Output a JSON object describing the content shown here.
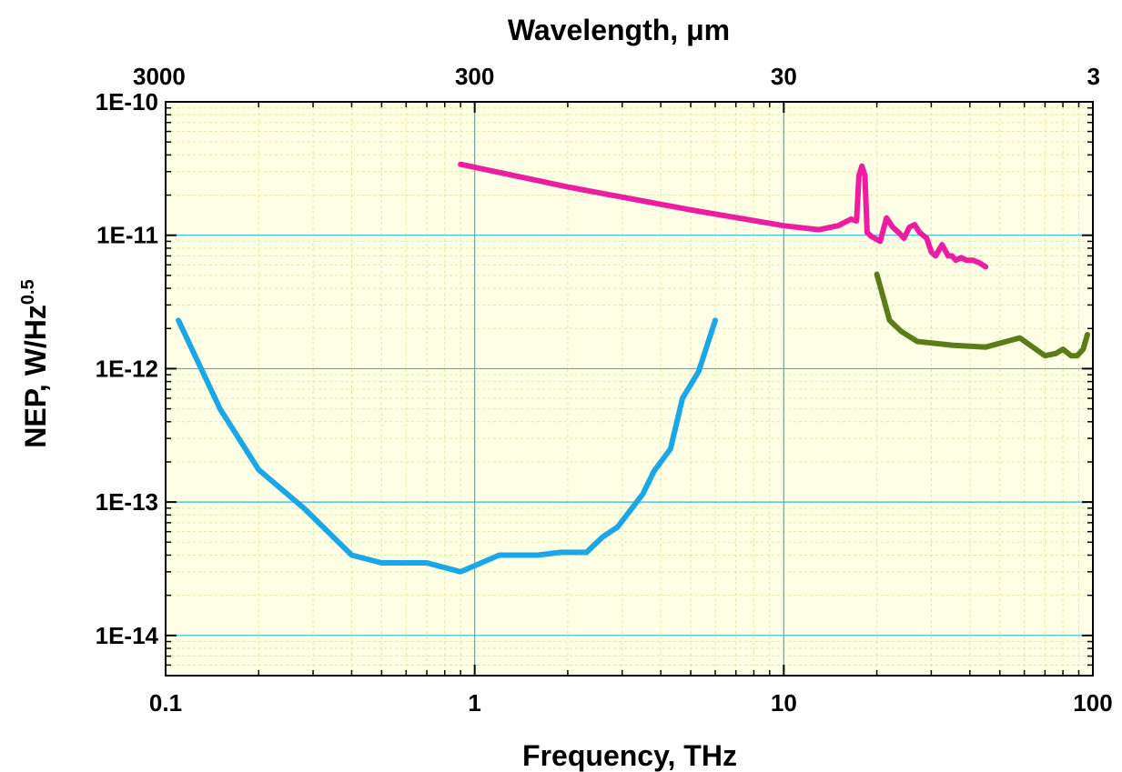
{
  "chart_data": {
    "type": "line",
    "x_axis": {
      "label": "Frequency, THz",
      "scale": "log",
      "range": [
        0.1,
        100
      ],
      "ticks": [
        0.1,
        1,
        10,
        100
      ],
      "tick_labels": [
        "0.1",
        "1",
        "10",
        "100"
      ]
    },
    "top_axis": {
      "label": "Wavelength, μm",
      "scale": "log",
      "ticks_freq_thz": [
        0.1,
        1,
        10,
        100
      ],
      "tick_labels": [
        "3000",
        "300",
        "30",
        "3"
      ]
    },
    "y_axis": {
      "label": "NEP, W/Hz",
      "label_superscript": "0.5",
      "scale": "log",
      "range": [
        5e-15,
        1e-10
      ],
      "ticks": [
        1e-14,
        1e-13,
        1e-12,
        1e-11,
        1e-10
      ],
      "tick_labels": [
        "1E-14",
        "1E-13",
        "1E-12",
        "1E-11",
        "1E-10"
      ]
    },
    "grid": true,
    "series": [
      {
        "color": "#1aa7e8",
        "x": [
          0.11,
          0.15,
          0.2,
          0.28,
          0.4,
          0.5,
          0.7,
          0.9,
          1.2,
          1.6,
          1.9,
          2.3,
          2.6,
          2.9,
          3.5,
          3.8,
          4.3,
          4.7,
          5.3,
          6.0
        ],
        "y": [
          2.3e-12,
          5e-13,
          1.75e-13,
          9e-14,
          4e-14,
          3.5e-14,
          3.5e-14,
          3e-14,
          4e-14,
          4e-14,
          4.2e-14,
          4.2e-14,
          5.5e-14,
          6.5e-14,
          1.15e-13,
          1.7e-13,
          2.5e-13,
          6e-13,
          9.5e-13,
          2.3e-12
        ]
      },
      {
        "color": "#ee1ca0",
        "x": [
          0.9,
          2,
          5,
          10,
          13,
          15,
          16.5,
          17.2,
          17.5,
          17.9,
          18.3,
          18.6,
          19.2,
          20.5,
          21.5,
          22.5,
          23.5,
          24.5,
          25.5,
          26.5,
          27.5,
          29,
          30,
          31,
          32.5,
          34,
          35,
          36,
          37.5,
          39,
          41,
          43,
          45
        ],
        "y": [
          3.4e-11,
          2.3e-11,
          1.55e-11,
          1.18e-11,
          1.1e-11,
          1.18e-11,
          1.32e-11,
          1.28e-11,
          2.8e-11,
          3.3e-11,
          2.8e-11,
          1.05e-11,
          9.8e-12,
          9e-12,
          1.35e-11,
          1.15e-11,
          1.05e-11,
          9.5e-12,
          1.15e-11,
          1.2e-11,
          1.05e-11,
          9.5e-12,
          7.5e-12,
          7e-12,
          8.5e-12,
          7e-12,
          7e-12,
          6.5e-12,
          6.8e-12,
          6.5e-12,
          6.5e-12,
          6.2e-12,
          5.8e-12
        ]
      },
      {
        "color": "#5a7d18",
        "x": [
          20,
          22,
          24,
          27,
          35,
          45,
          58,
          70,
          76,
          80,
          85,
          89,
          93,
          96
        ],
        "y": [
          5.1e-12,
          2.3e-12,
          1.9e-12,
          1.6e-12,
          1.5e-12,
          1.45e-12,
          1.7e-12,
          1.25e-12,
          1.3e-12,
          1.4e-12,
          1.25e-12,
          1.25e-12,
          1.4e-12,
          1.8e-12
        ]
      }
    ]
  }
}
